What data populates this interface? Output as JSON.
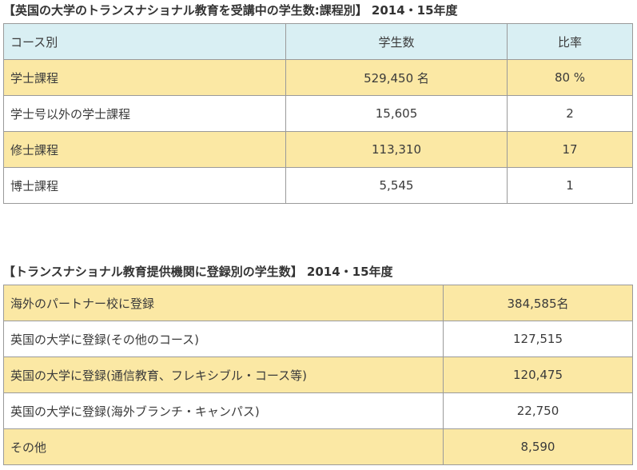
{
  "section1": {
    "title": "【英国の大学のトランスナショナル教育を受講中の学生数:課程別】 2014・15年度",
    "headers": [
      "コース別",
      "学生数",
      "比率"
    ],
    "rows": [
      {
        "course": "学士課程",
        "students": "529,450 名",
        "ratio": "80 %"
      },
      {
        "course": "学士号以外の学士課程",
        "students": "15,605",
        "ratio": "2"
      },
      {
        "course": "修士課程",
        "students": "113,310",
        "ratio": "17"
      },
      {
        "course": "博士課程",
        "students": "5,545",
        "ratio": "1"
      }
    ]
  },
  "section2": {
    "title": "【トランスナショナル教育提供機関に登録別の学生数】 2014・15年度",
    "rows": [
      {
        "category": "海外のパートナー校に登録",
        "students": "384,585名"
      },
      {
        "category": "英国の大学に登録(その他のコース)",
        "students": "127,515"
      },
      {
        "category": "英国の大学に登録(通信教育、フレキシブル・コース等)",
        "students": "120,475"
      },
      {
        "category": "英国の大学に登録(海外ブランチ・キャンパス)",
        "students": "22,750"
      },
      {
        "category": "その他",
        "students": "8,590"
      }
    ]
  },
  "colors": {
    "header_bg": "#d9eff3",
    "highlight_row_bg": "#fbe8a4",
    "border": "#9a9a9a"
  }
}
